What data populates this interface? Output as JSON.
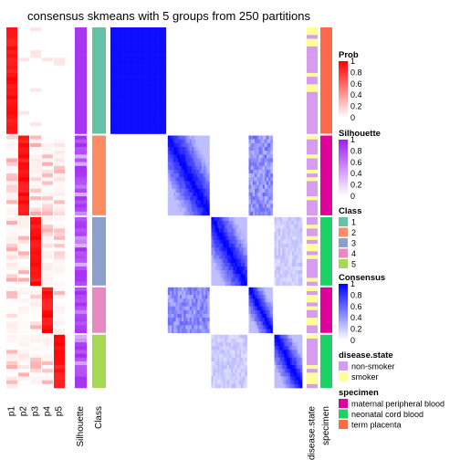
{
  "chart_data": {
    "type": "heatmap",
    "title": "consensus skmeans with 5 groups from 250 partitions",
    "groups": [
      {
        "class": 1,
        "n": 28
      },
      {
        "class": 2,
        "n": 21
      },
      {
        "class": 3,
        "n": 18
      },
      {
        "class": 4,
        "n": 12
      },
      {
        "class": 5,
        "n": 14
      }
    ],
    "prob_columns": [
      "p1",
      "p2",
      "p3",
      "p4",
      "p5"
    ],
    "annotation_columns": [
      "Silhouette",
      "Class"
    ],
    "right_annotation_columns": [
      "disease.state",
      "specimen"
    ],
    "legends": {
      "prob": {
        "title": "Prob",
        "ticks": [
          "1",
          "0.8",
          "0.6",
          "0.4",
          "0.2",
          "0"
        ]
      },
      "silhouette": {
        "title": "Silhouette",
        "ticks": [
          "1",
          "0.8",
          "0.6",
          "0.4",
          "0.2",
          "0"
        ]
      },
      "class": {
        "title": "Class",
        "labels": [
          "1",
          "2",
          "3",
          "4",
          "5"
        ]
      },
      "consensus": {
        "title": "Consensus",
        "ticks": [
          "1",
          "0.8",
          "0.6",
          "0.4",
          "0.2",
          "0"
        ]
      },
      "disease_state": {
        "title": "disease.state",
        "labels": [
          "non-smoker",
          "smoker"
        ]
      },
      "specimen": {
        "title": "specimen",
        "labels": [
          "maternal peripheral blood",
          "neonatal cord blood",
          "term placenta"
        ]
      }
    },
    "colors": {
      "class": [
        "#66c2a5",
        "#fc8d62",
        "#8da0cb",
        "#e78ac3",
        "#a6d854"
      ],
      "prob_high": "#ff0000",
      "silhouette_high": "#9e1ff0",
      "consensus_high": "#0000ff",
      "disease_state": [
        "#d59cf0",
        "#ffff99"
      ],
      "specimen": [
        "#e0009c",
        "#1ed166",
        "#fb6a4a"
      ]
    },
    "specimen_by_group": [
      "term placenta",
      "maternal peripheral blood",
      "neonatal cord blood",
      "maternal peripheral blood",
      "neonatal cord blood"
    ]
  }
}
